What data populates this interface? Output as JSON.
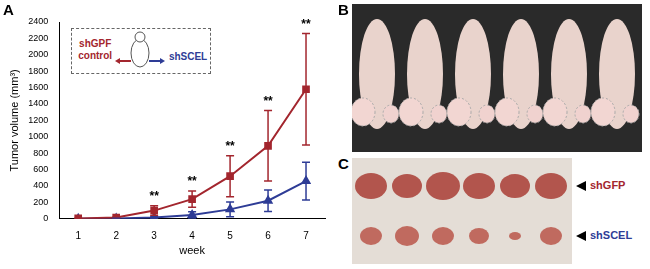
{
  "chart_data": {
    "type": "line",
    "panel": "A",
    "x_label": "week",
    "y_label": "Tumor volume (mm³)",
    "categories": [
      "1",
      "2",
      "3",
      "4",
      "5",
      "6",
      "7"
    ],
    "series": [
      {
        "name": "shGPF control",
        "color": "#a3262e",
        "marker": "square",
        "values": [
          5,
          15,
          100,
          240,
          520,
          890,
          1580
        ],
        "errors": [
          3,
          5,
          60,
          100,
          250,
          430,
          680
        ]
      },
      {
        "name": "shSCEL",
        "color": "#2e3c96",
        "marker": "triangle",
        "values": [
          0,
          5,
          15,
          45,
          115,
          220,
          460
        ],
        "errors": [
          0,
          3,
          10,
          40,
          90,
          130,
          230
        ]
      }
    ],
    "ylim": [
      0,
      2400
    ],
    "yticks": [
      0,
      200,
      400,
      600,
      800,
      1000,
      1200,
      1400,
      1600,
      1800,
      2000,
      2200,
      2400
    ],
    "grid": false,
    "legend": "upper left",
    "annotations": [
      {
        "x": "3",
        "text": "**"
      },
      {
        "x": "4",
        "text": "**"
      },
      {
        "x": "5",
        "text": "**"
      },
      {
        "x": "6",
        "text": "**"
      },
      {
        "x": "7",
        "text": "**"
      }
    ]
  },
  "photos": [
    {
      "panel": "B"
    },
    {
      "panel": "C",
      "row_labels": [
        {
          "text": "shGFP",
          "color": "#a3262e"
        },
        {
          "text": "shSCEL",
          "color": "#2e3c96"
        }
      ]
    }
  ]
}
